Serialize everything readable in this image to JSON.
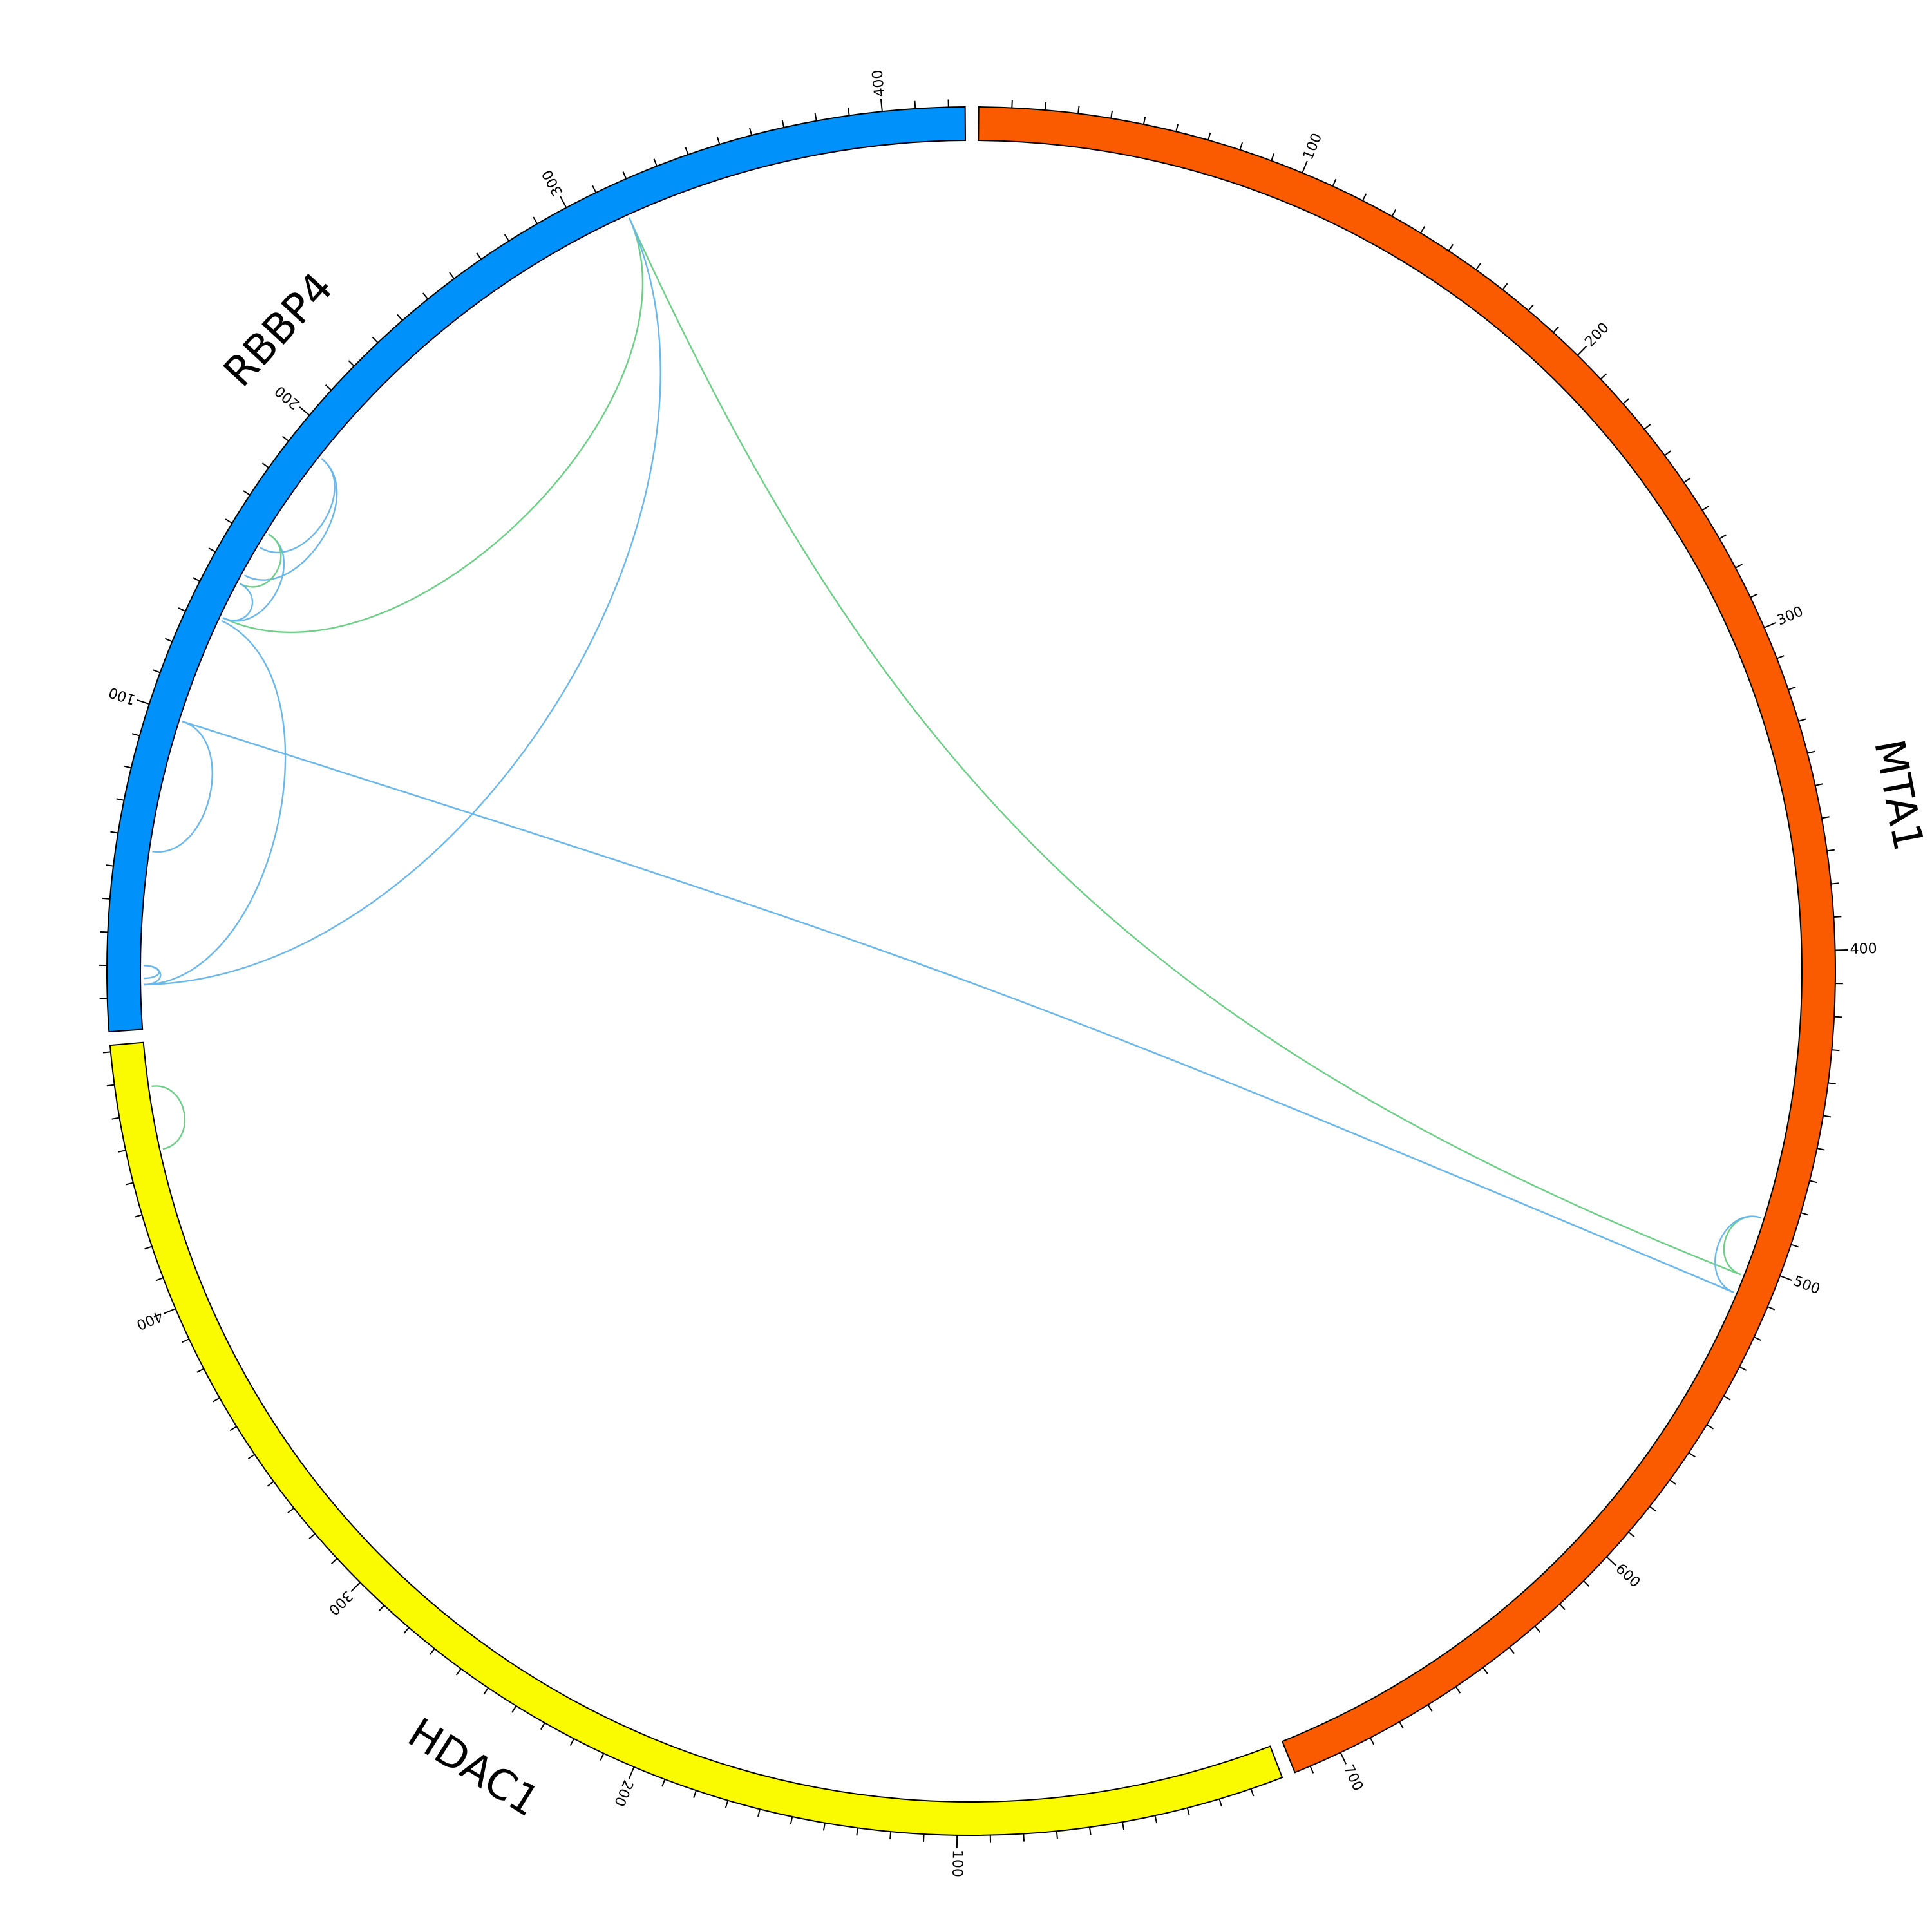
{
  "segments": [
    {
      "name": "MTA1",
      "length": 715,
      "color": "#fa5a00"
    },
    {
      "name": "HDAC1",
      "length": 482,
      "color": "#fafa00"
    },
    {
      "name": "RBBP4",
      "length": 425,
      "color": "#0092fa"
    }
  ],
  "tick_minor": 10,
  "tick_major": 100,
  "links": [
    {
      "a": [
        "RBBP4",
        316
      ],
      "b": [
        "MTA1",
        504
      ],
      "color": "#6ccf86"
    },
    {
      "a": [
        "RBBP4",
        316
      ],
      "b": [
        "RBBP4",
        133
      ],
      "color": "#6ccf86"
    },
    {
      "a": [
        "RBBP4",
        316
      ],
      "b": [
        "RBBP4",
        14
      ],
      "color": "#6ab7ec"
    },
    {
      "a": [
        "RBBP4",
        98
      ],
      "b": [
        "MTA1",
        510
      ],
      "color": "#6ab7ec"
    },
    {
      "a": [
        "RBBP4",
        98
      ],
      "b": [
        "MTA1",
        510
      ],
      "color": "#6ab7ec"
    },
    {
      "a": [
        "RBBP4",
        98
      ],
      "b": [
        "RBBP4",
        56
      ],
      "color": "#6ab7ec"
    },
    {
      "a": [
        "RBBP4",
        192
      ],
      "b": [
        "RBBP4",
        148
      ],
      "color": "#6ab7ec"
    },
    {
      "a": [
        "RBBP4",
        192
      ],
      "b": [
        "RBBP4",
        158
      ],
      "color": "#6ab7ec"
    },
    {
      "a": [
        "RBBP4",
        163
      ],
      "b": [
        "RBBP4",
        133
      ],
      "color": "#6ab7ec"
    },
    {
      "a": [
        "RBBP4",
        163
      ],
      "b": [
        "RBBP4",
        145
      ],
      "color": "#6ccf86"
    },
    {
      "a": [
        "RBBP4",
        145
      ],
      "b": [
        "RBBP4",
        133
      ],
      "color": "#6ab7ec"
    },
    {
      "a": [
        "RBBP4",
        132
      ],
      "b": [
        "RBBP4",
        14
      ],
      "color": "#6ab7ec"
    },
    {
      "a": [
        "RBBP4",
        20
      ],
      "b": [
        "RBBP4",
        14
      ],
      "color": "#6ab7ec"
    },
    {
      "a": [
        "RBBP4",
        20
      ],
      "b": [
        "RBBP4",
        16
      ],
      "color": "#6ab7ec"
    },
    {
      "a": [
        "MTA1",
        485
      ],
      "b": [
        "MTA1",
        504
      ],
      "color": "#6ccf86"
    },
    {
      "a": [
        "MTA1",
        485
      ],
      "b": [
        "MTA1",
        510
      ],
      "color": "#6ab7ec"
    },
    {
      "a": [
        "HDAC1",
        468
      ],
      "b": [
        "HDAC1",
        448
      ],
      "color": "#6ccf86"
    }
  ]
}
